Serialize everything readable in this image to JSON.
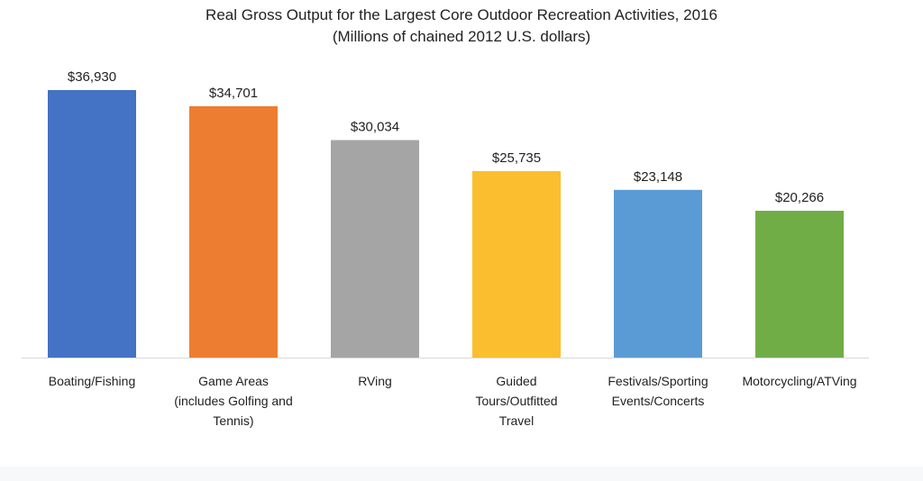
{
  "chart_data": {
    "type": "bar",
    "title": "Real Gross Output for the Largest Core Outdoor Recreation Activities, 2016",
    "subtitle": "(Millions of chained 2012 U.S. dollars)",
    "xlabel": "",
    "ylabel": "",
    "ylim": [
      0,
      36930
    ],
    "grid": false,
    "legend": "none",
    "categories": [
      [
        "Boating/Fishing"
      ],
      [
        "Game Areas",
        "(includes Golfing and",
        "Tennis)"
      ],
      [
        "RVing"
      ],
      [
        "Guided",
        "Tours/Outfitted",
        "Travel"
      ],
      [
        "Festivals/Sporting",
        "Events/Concerts"
      ],
      [
        "Motorcycling/ATVing"
      ]
    ],
    "values": [
      36930,
      34701,
      30034,
      25735,
      23148,
      20266
    ],
    "value_labels": [
      "$36,930",
      "$34,701",
      "$30,034",
      "$25,735",
      "$23,148",
      "$20,266"
    ],
    "colors": [
      "#4472c4",
      "#ed7d31",
      "#a5a5a5",
      "#fbbe2e",
      "#5b9bd5",
      "#70ad47"
    ]
  }
}
